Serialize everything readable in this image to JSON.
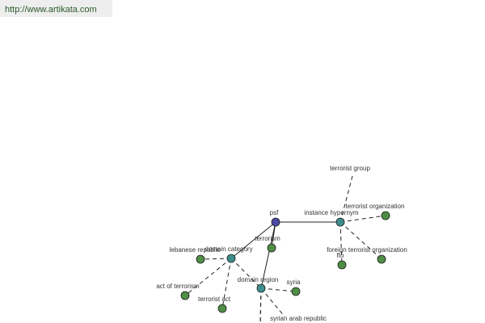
{
  "header": {
    "url": "http://www.artikata.com"
  },
  "nodes": [
    {
      "label": "psf"
    },
    {
      "label": "instance hypernym"
    },
    {
      "label": "domain category"
    },
    {
      "label": "terrorism"
    },
    {
      "label": "domain region"
    },
    {
      "label": "terrorist group"
    },
    {
      "label": "terrorist organization"
    },
    {
      "label": "foreign terrorist organization"
    },
    {
      "label": "fto"
    },
    {
      "label": "lebanese republic"
    },
    {
      "label": "act of terrorism"
    },
    {
      "label": "terrorist act"
    },
    {
      "label": "syria"
    },
    {
      "label": "syrian arab republic"
    }
  ]
}
